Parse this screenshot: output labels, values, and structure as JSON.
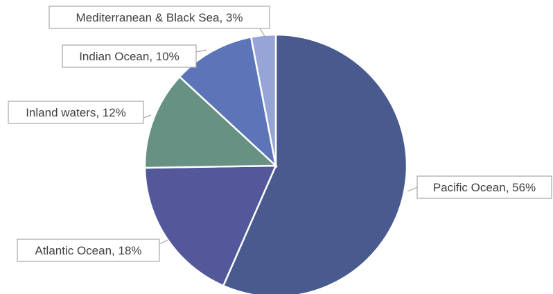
{
  "chart_data": {
    "type": "pie",
    "title": "",
    "start_angle_deg": 0,
    "direction": "clockwise",
    "legend": "none",
    "slices": [
      {
        "label": "Pacific Ocean, 56%",
        "name": "Pacific Ocean",
        "value": 56,
        "color": "#485a8e"
      },
      {
        "label": "Atlantic Ocean, 18%",
        "name": "Atlantic Ocean",
        "value": 18,
        "color": "#53589a"
      },
      {
        "label": "Inland waters, 12%",
        "name": "Inland waters",
        "value": 12,
        "color": "#679283"
      },
      {
        "label": "Indian Ocean, 10%",
        "name": "Indian Ocean",
        "value": 10,
        "color": "#5c75b8"
      },
      {
        "label": "Mediterranean & Black Sea, 3%",
        "name": "Mediterranean & Black Sea",
        "value": 3,
        "color": "#97a4d6"
      }
    ]
  }
}
